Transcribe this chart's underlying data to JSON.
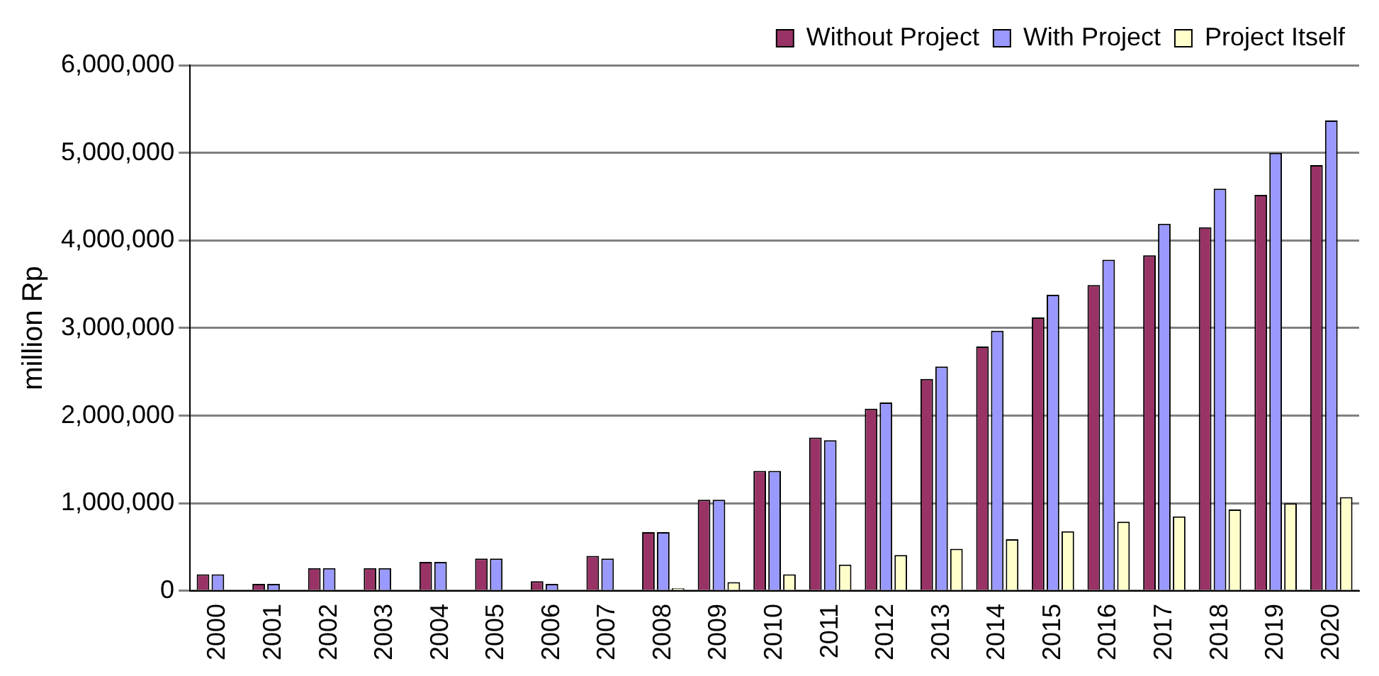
{
  "chart_data": {
    "type": "bar",
    "ylabel": "million Rp",
    "categories": [
      "2000",
      "2001",
      "2002",
      "2003",
      "2004",
      "2005",
      "2006",
      "2007",
      "2008",
      "2009",
      "2010",
      "2011",
      "2012",
      "2013",
      "2014",
      "2015",
      "2016",
      "2017",
      "2018",
      "2019",
      "2020"
    ],
    "series": [
      {
        "name": "Without Project",
        "color": "#993366",
        "values": [
          190000,
          80000,
          260000,
          260000,
          330000,
          370000,
          110000,
          400000,
          670000,
          1040000,
          1370000,
          1750000,
          2080000,
          2420000,
          2790000,
          3120000,
          3490000,
          3830000,
          4150000,
          4520000,
          4860000
        ]
      },
      {
        "name": "With Project",
        "color": "#9999ff",
        "values": [
          190000,
          80000,
          260000,
          260000,
          330000,
          370000,
          80000,
          370000,
          670000,
          1040000,
          1370000,
          1720000,
          2150000,
          2560000,
          2970000,
          3380000,
          3780000,
          4190000,
          4590000,
          5000000,
          5370000
        ]
      },
      {
        "name": "Project Itself",
        "color": "#ffffcc",
        "values": [
          0,
          0,
          0,
          0,
          0,
          0,
          0,
          0,
          30000,
          100000,
          190000,
          300000,
          410000,
          480000,
          590000,
          680000,
          790000,
          850000,
          930000,
          1000000,
          1070000
        ]
      }
    ],
    "ylim": [
      0,
      6000000
    ],
    "yticks": [
      0,
      {
        "value": 1000000,
        "label": "1,000,000"
      },
      {
        "value": 2000000,
        "label": "2,000,000"
      },
      {
        "value": 3000000,
        "label": "3,000,000"
      },
      {
        "value": 4000000,
        "label": "4,000,000"
      },
      {
        "value": 5000000,
        "label": "5,000,000"
      },
      {
        "value": 6000000,
        "label": "6,000,000"
      }
    ],
    "grid": "y",
    "legend": "top"
  }
}
